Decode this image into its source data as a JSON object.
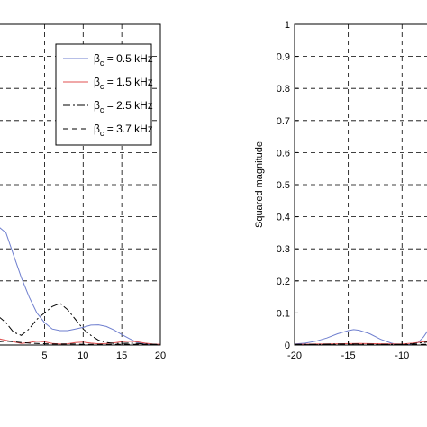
{
  "chart_data": [
    {
      "panel": "left",
      "type": "line",
      "title": "",
      "xlabel": "",
      "ylabel": "",
      "xlim": [
        -1.0,
        20
      ],
      "ylim": [
        0,
        1
      ],
      "x_ticks": [
        "5",
        "10",
        "15",
        "20"
      ],
      "x_tick_values": [
        5,
        10,
        15,
        20
      ],
      "y_grid_values": [
        0.1,
        0.2,
        0.3,
        0.4,
        0.5,
        0.6,
        0.7,
        0.8,
        0.9
      ],
      "grid": true,
      "legend_position": "top-right",
      "legend": {
        "symbol": "β",
        "subscript": "c",
        "entries": [
          " = 0.5 kHz",
          " = 1.5 kHz",
          " = 2.5 kHz",
          " = 3.7 kHz"
        ]
      },
      "series": [
        {
          "name": "βc = 0.5 kHz",
          "color": "#6f7fcf",
          "style": "solid",
          "x": [
            -1.0,
            0.0,
            1.0,
            2.0,
            3.0,
            4.0,
            5.0,
            6.0,
            7.0,
            8.0,
            9.0,
            10.0,
            11.0,
            12.0,
            13.0,
            14.0,
            15.0,
            16.0,
            17.0,
            18.0,
            19.0,
            20.0
          ],
          "y": [
            0.37,
            0.35,
            0.28,
            0.21,
            0.15,
            0.1,
            0.07,
            0.05,
            0.045,
            0.045,
            0.05,
            0.055,
            0.062,
            0.063,
            0.058,
            0.047,
            0.033,
            0.02,
            0.008,
            0.003,
            0.002,
            0.002
          ]
        },
        {
          "name": "βc = 1.5 kHz",
          "color": "#e05050",
          "style": "solid",
          "x": [
            -1.0,
            0.0,
            1.0,
            2.0,
            3.0,
            4.0,
            5.0,
            6.0,
            7.0,
            8.0,
            9.0,
            10.0,
            11.0,
            12.0,
            13.0,
            14.0,
            15.0,
            16.0,
            17.0,
            18.0,
            19.0,
            20.0
          ],
          "y": [
            0.02,
            0.015,
            0.01,
            0.005,
            0.008,
            0.012,
            0.01,
            0.005,
            0.003,
            0.004,
            0.008,
            0.009,
            0.006,
            0.004,
            0.005,
            0.007,
            0.01,
            0.012,
            0.01,
            0.006,
            0.003,
            0.002
          ]
        },
        {
          "name": "βc = 2.5 kHz",
          "color": "#000000",
          "style": "dashdot",
          "x": [
            -1.0,
            0.0,
            1.0,
            2.0,
            3.0,
            4.0,
            5.0,
            6.0,
            7.0,
            8.0,
            9.0,
            10.0,
            11.0,
            12.0,
            13.0,
            14.0,
            15.0,
            16.0,
            17.0,
            18.0,
            19.0,
            20.0
          ],
          "y": [
            0.09,
            0.07,
            0.04,
            0.03,
            0.05,
            0.08,
            0.1,
            0.12,
            0.13,
            0.11,
            0.08,
            0.05,
            0.03,
            0.015,
            0.008,
            0.005,
            0.005,
            0.006,
            0.005,
            0.003,
            0.002,
            0.001
          ]
        },
        {
          "name": "βc = 3.7 kHz",
          "color": "#000000",
          "style": "dashed",
          "x": [
            -1.0,
            0.0,
            1.0,
            2.0,
            3.0,
            4.0,
            5.0,
            6.0,
            7.0,
            8.0,
            9.0,
            10.0,
            11.0,
            12.0,
            13.0,
            14.0,
            15.0,
            16.0,
            17.0,
            18.0,
            19.0,
            20.0
          ],
          "y": [
            0.01,
            0.012,
            0.01,
            0.008,
            0.006,
            0.005,
            0.004,
            0.003,
            0.003,
            0.003,
            0.003,
            0.002,
            0.002,
            0.002,
            0.002,
            0.002,
            0.002,
            0.002,
            0.002,
            0.002,
            0.002,
            0.002
          ]
        }
      ]
    },
    {
      "panel": "right",
      "type": "line",
      "title": "",
      "xlabel": "",
      "ylabel": "Squared magnitude",
      "xlim": [
        -20,
        -6.5
      ],
      "ylim": [
        0,
        1
      ],
      "x_ticks": [
        "-20",
        "-15",
        "-10"
      ],
      "x_tick_values": [
        -20,
        -15,
        -10
      ],
      "y_ticks": [
        "0",
        "0.1",
        "0.2",
        "0.3",
        "0.4",
        "0.5",
        "0.6",
        "0.7",
        "0.8",
        "0.9",
        "1"
      ],
      "y_tick_values": [
        0,
        0.1,
        0.2,
        0.3,
        0.4,
        0.5,
        0.6,
        0.7,
        0.8,
        0.9,
        1
      ],
      "grid": true,
      "series": [
        {
          "name": "βc = 0.5 kHz",
          "color": "#6f7fcf",
          "style": "solid",
          "x": [
            -20,
            -19,
            -18,
            -17,
            -16,
            -15,
            -14.5,
            -14,
            -13,
            -12,
            -11,
            -10.5,
            -10,
            -9.5,
            -9,
            -8.5,
            -8,
            -7.5,
            -7,
            -6.5
          ],
          "y": [
            0.003,
            0.006,
            0.012,
            0.022,
            0.035,
            0.045,
            0.048,
            0.046,
            0.035,
            0.018,
            0.006,
            0.002,
            0.001,
            0.001,
            0.002,
            0.008,
            0.025,
            0.05,
            0.07,
            0.085
          ]
        },
        {
          "name": "βc = 1.5 kHz",
          "color": "#e05050",
          "style": "solid",
          "x": [
            -20,
            -18,
            -16,
            -14,
            -12,
            -10,
            -9,
            -8,
            -7,
            -6.5
          ],
          "y": [
            0.002,
            0.003,
            0.004,
            0.005,
            0.004,
            0.003,
            0.006,
            0.01,
            0.014,
            0.016
          ]
        },
        {
          "name": "βc = 2.5 kHz",
          "color": "#000000",
          "style": "dashdot",
          "x": [
            -20,
            -18,
            -16,
            -14,
            -12,
            -10,
            -9,
            -8,
            -7,
            -6.5
          ],
          "y": [
            0.002,
            0.002,
            0.003,
            0.003,
            0.002,
            0.002,
            0.004,
            0.008,
            0.012,
            0.014
          ]
        },
        {
          "name": "βc = 3.7 kHz",
          "color": "#000000",
          "style": "dashed",
          "x": [
            -20,
            -18,
            -16,
            -14,
            -12,
            -10,
            -8,
            -6.5
          ],
          "y": [
            0.001,
            0.001,
            0.001,
            0.001,
            0.001,
            0.001,
            0.002,
            0.003
          ]
        }
      ]
    }
  ]
}
